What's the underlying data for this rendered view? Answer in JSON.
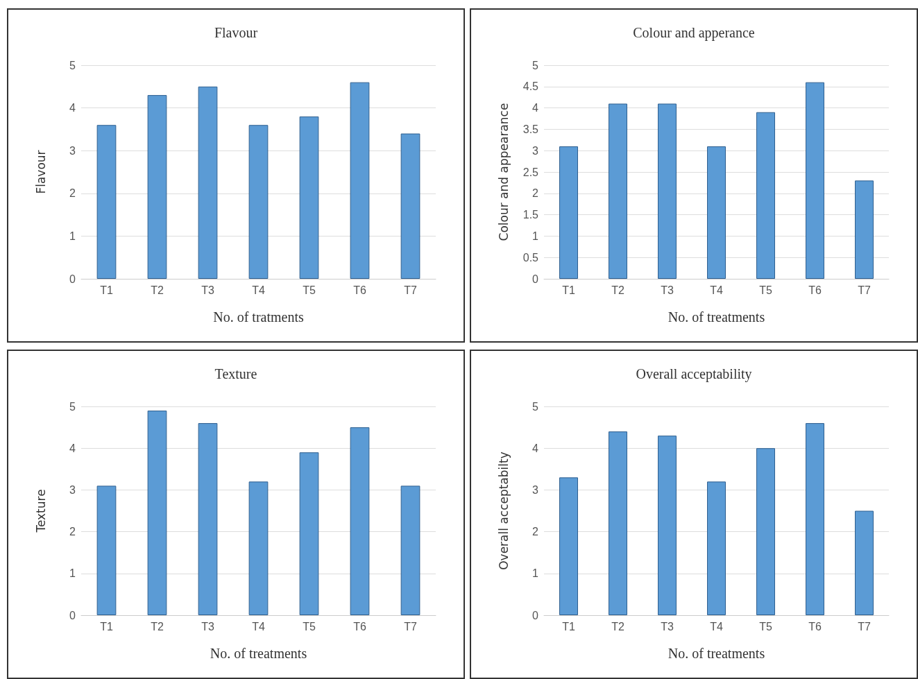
{
  "chart_data": [
    {
      "type": "bar",
      "title": "Flavour",
      "xlabel": "No. of tratments",
      "ylabel": "Flavour",
      "categories": [
        "T1",
        "T2",
        "T3",
        "T4",
        "T5",
        "T6",
        "T7"
      ],
      "values": [
        3.6,
        4.3,
        4.5,
        3.6,
        3.8,
        4.6,
        3.4
      ],
      "color": "#5b9bd5",
      "ylim": [
        0,
        5
      ],
      "yticks": [
        0,
        1,
        2,
        3,
        4,
        5
      ],
      "grid": "y"
    },
    {
      "type": "bar",
      "title": "Colour and apperance",
      "xlabel": "No. of treatments",
      "ylabel": "Colour and appearance",
      "categories": [
        "T1",
        "T2",
        "T3",
        "T4",
        "T5",
        "T6",
        "T7"
      ],
      "values": [
        3.1,
        4.1,
        4.1,
        3.1,
        3.9,
        4.6,
        2.3
      ],
      "color": "#5b9bd5",
      "ylim": [
        0,
        5
      ],
      "yticks": [
        0,
        0.5,
        1,
        1.5,
        2,
        2.5,
        3,
        3.5,
        4,
        4.5,
        5
      ],
      "grid": "y"
    },
    {
      "type": "bar",
      "title": "Texture",
      "xlabel": "No. of treatments",
      "ylabel": "Texture",
      "categories": [
        "T1",
        "T2",
        "T3",
        "T4",
        "T5",
        "T6",
        "T7"
      ],
      "values": [
        3.1,
        4.9,
        4.6,
        3.2,
        3.9,
        4.5,
        3.1
      ],
      "color": "#5b9bd5",
      "ylim": [
        0,
        5
      ],
      "yticks": [
        0,
        1,
        2,
        3,
        4,
        5
      ],
      "grid": "y"
    },
    {
      "type": "bar",
      "title": "Overall acceptability",
      "xlabel": "No. of treatments",
      "ylabel": "Overall acceptabilty",
      "categories": [
        "T1",
        "T2",
        "T3",
        "T4",
        "T5",
        "T6",
        "T7"
      ],
      "values": [
        3.3,
        4.4,
        4.3,
        3.2,
        4.0,
        4.6,
        2.5
      ],
      "color": "#5b9bd5",
      "ylim": [
        0,
        5
      ],
      "yticks": [
        0,
        1,
        2,
        3,
        4,
        5
      ],
      "grid": "y"
    }
  ]
}
